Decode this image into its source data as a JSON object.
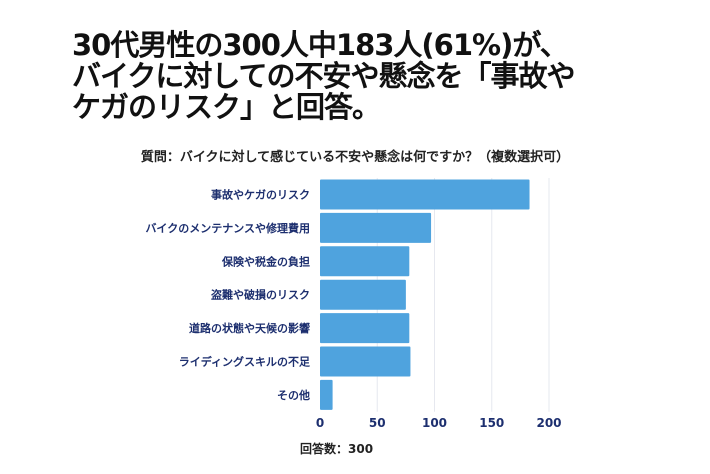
{
  "title_lines": [
    "30代男性の300人中183人(61%)が、",
    "バイクに対しての不安や懸念を「事故や",
    "ケガのリスク」と回答。"
  ],
  "chart_data": {
    "type": "bar",
    "orientation": "horizontal",
    "title": "質問：バイクに対して感じている不安や懸念は何ですか？（複数選択可）",
    "categories": [
      "事故やケガのリスク",
      "バイクのメンテナンスや修理費用",
      "保険や税金の負担",
      "盗難や破損のリスク",
      "道路の状態や天候の影響",
      "ライディングスキルの不足",
      "その他"
    ],
    "values": [
      183,
      97,
      78,
      75,
      78,
      79,
      11
    ],
    "xlim": [
      0,
      200
    ],
    "xticks": [
      "0",
      "50",
      "100",
      "150",
      "200"
    ],
    "grid": true,
    "bar_color": "#4fa3de",
    "note": "回答数：300"
  }
}
